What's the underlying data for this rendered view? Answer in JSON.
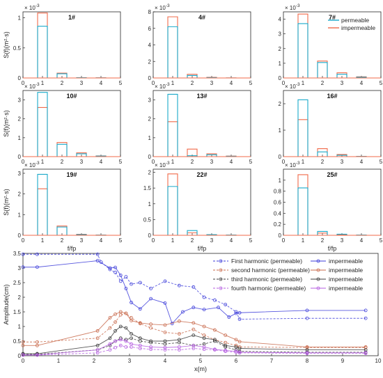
{
  "chart_data": [
    {
      "type": "bar",
      "kind": "spectrum-grid",
      "exponent_label": "× 10^-3",
      "exponent_base": "× 10",
      "exponent_power": "-3",
      "ylabel": "S(f)(m²·s)",
      "xlabel": "f/fp",
      "xlim": [
        0,
        5
      ],
      "xticks": [
        "0",
        "1",
        "2",
        "3",
        "4",
        "5"
      ],
      "categories": [
        "1",
        "2",
        "3",
        "4"
      ],
      "bar_width": 0.5,
      "legend": {
        "placement": "top-right of panel 7#",
        "entries": [
          "permeable",
          "impermeable"
        ]
      },
      "series_styles": [
        {
          "name": "permeable",
          "color": "#1aa9c9"
        },
        {
          "name": "impermeable",
          "color": "#f06a4a"
        }
      ],
      "panels": [
        {
          "title": "1#",
          "ylim": [
            0,
            1.1
          ],
          "yticks": [
            "0",
            "0.5",
            "1"
          ],
          "permeable": [
            0.86,
            0.07,
            0.005,
            0.002
          ],
          "impermeable": [
            1.08,
            0.08,
            0.005,
            0.002
          ]
        },
        {
          "title": "4#",
          "ylim": [
            0,
            8
          ],
          "yticks": [
            "0",
            "2",
            "4",
            "6",
            "8"
          ],
          "permeable": [
            6.2,
            0.3,
            0.05,
            0.01
          ],
          "impermeable": [
            7.4,
            0.45,
            0.08,
            0.01
          ]
        },
        {
          "title": "7#",
          "ylim": [
            0,
            4.5
          ],
          "yticks": [
            "0",
            "1",
            "2",
            "3",
            "4"
          ],
          "permeable": [
            3.7,
            1.05,
            0.25,
            0.05
          ],
          "impermeable": [
            4.35,
            1.15,
            0.35,
            0.08
          ]
        },
        {
          "title": "10#",
          "ylim": [
            0,
            3.5
          ],
          "yticks": [
            "0",
            "1",
            "2",
            "3"
          ],
          "permeable": [
            3.4,
            0.65,
            0.15,
            0.03
          ],
          "impermeable": [
            2.6,
            0.75,
            0.2,
            0.04
          ]
        },
        {
          "title": "13#",
          "ylim": [
            0,
            3.5
          ],
          "yticks": [
            "0",
            "1",
            "2",
            "3"
          ],
          "permeable": [
            3.3,
            0.05,
            0.1,
            0.02
          ],
          "impermeable": [
            1.85,
            0.4,
            0.15,
            0.03
          ]
        },
        {
          "title": "16#",
          "ylim": [
            0,
            2.5
          ],
          "yticks": [
            "0",
            "1",
            "2"
          ],
          "permeable": [
            2.15,
            0.18,
            0.05,
            0.01
          ],
          "impermeable": [
            1.4,
            0.3,
            0.08,
            0.01
          ]
        },
        {
          "title": "19#",
          "ylim": [
            0,
            3.2
          ],
          "yticks": [
            "0",
            "1",
            "2",
            "3"
          ],
          "permeable": [
            2.95,
            0.4,
            0.03,
            0.01
          ],
          "impermeable": [
            2.25,
            0.45,
            0.05,
            0.01
          ]
        },
        {
          "title": "22#",
          "ylim": [
            0,
            2.1
          ],
          "yticks": [
            "0",
            "0.5",
            "1",
            "1.5",
            "2"
          ],
          "permeable": [
            1.55,
            0.15,
            0.02,
            0.01
          ],
          "impermeable": [
            1.95,
            0.08,
            0.02,
            0.01
          ]
        },
        {
          "title": "25#",
          "ylim": [
            0,
            1.2
          ],
          "yticks": [
            "0",
            "0.2",
            "0.4",
            "0.6",
            "0.8",
            "1"
          ],
          "permeable": [
            0.86,
            0.07,
            0.02,
            0.005
          ],
          "impermeable": [
            1.1,
            0.04,
            0.01,
            0.005
          ]
        }
      ]
    },
    {
      "type": "line",
      "xlabel": "x(m)",
      "ylabel": "Amplitude(cm)",
      "xlim": [
        0,
        10
      ],
      "ylim": [
        0,
        3.5
      ],
      "xticks": [
        0,
        1,
        2,
        3,
        4,
        5,
        6,
        7,
        8,
        9,
        10
      ],
      "yticks": [
        0,
        0.5,
        1,
        1.5,
        2,
        2.5,
        3,
        3.5
      ],
      "legend_placement": "top-right",
      "series": [
        {
          "name": "First harmonic (permeable)",
          "color": "#3b3bd9",
          "dashed": true,
          "points": [
            [
              0,
              3.47
            ],
            [
              0.4,
              3.47
            ],
            [
              2.1,
              3.47
            ],
            [
              2.2,
              3.2
            ],
            [
              2.45,
              2.95
            ],
            [
              2.6,
              2.85
            ],
            [
              2.75,
              2.55
            ],
            [
              2.9,
              2.7
            ],
            [
              3.05,
              2.45
            ],
            [
              3.3,
              2.5
            ],
            [
              3.6,
              2.3
            ],
            [
              4.0,
              2.55
            ],
            [
              4.4,
              2.4
            ],
            [
              4.8,
              2.35
            ],
            [
              5.1,
              2.0
            ],
            [
              5.4,
              1.9
            ],
            [
              5.7,
              1.75
            ],
            [
              6.0,
              1.5
            ],
            [
              6.1,
              1.25
            ],
            [
              8.0,
              1.28
            ],
            [
              9.65,
              1.28
            ]
          ]
        },
        {
          "name": "impermeable",
          "color": "#3b3bd9",
          "dashed": false,
          "points": [
            [
              0,
              3.03
            ],
            [
              0.4,
              3.03
            ],
            [
              2.1,
              3.25
            ],
            [
              2.45,
              3.0
            ],
            [
              2.6,
              3.02
            ],
            [
              2.75,
              2.75
            ],
            [
              2.9,
              2.3
            ],
            [
              3.05,
              1.82
            ],
            [
              3.3,
              1.6
            ],
            [
              3.6,
              1.95
            ],
            [
              4.0,
              1.8
            ],
            [
              4.2,
              1.1
            ],
            [
              4.5,
              1.5
            ],
            [
              4.8,
              1.65
            ],
            [
              5.1,
              1.58
            ],
            [
              5.5,
              1.65
            ],
            [
              5.8,
              1.32
            ],
            [
              6.0,
              1.45
            ],
            [
              6.1,
              1.47
            ],
            [
              8.0,
              1.55
            ],
            [
              9.65,
              1.55
            ]
          ]
        },
        {
          "name": "second harmonic (permeable)",
          "color": "#c8684a",
          "dashed": true,
          "points": [
            [
              0,
              0.47
            ],
            [
              0.4,
              0.47
            ],
            [
              2.1,
              0.6
            ],
            [
              2.45,
              0.95
            ],
            [
              2.6,
              1.15
            ],
            [
              2.75,
              1.4
            ],
            [
              2.9,
              1.45
            ],
            [
              3.05,
              1.3
            ],
            [
              3.3,
              1.1
            ],
            [
              3.6,
              0.95
            ],
            [
              4.0,
              0.8
            ],
            [
              4.4,
              0.75
            ],
            [
              4.8,
              0.9
            ],
            [
              5.1,
              0.7
            ],
            [
              5.4,
              0.55
            ],
            [
              5.7,
              0.45
            ],
            [
              6.0,
              0.35
            ],
            [
              6.1,
              0.3
            ],
            [
              8.0,
              0.28
            ],
            [
              9.65,
              0.28
            ]
          ]
        },
        {
          "name": "impermeable",
          "color": "#c8684a",
          "dashed": false,
          "points": [
            [
              0,
              0.35
            ],
            [
              0.4,
              0.35
            ],
            [
              2.1,
              0.85
            ],
            [
              2.45,
              1.3
            ],
            [
              2.6,
              1.42
            ],
            [
              2.75,
              1.5
            ],
            [
              2.9,
              1.45
            ],
            [
              3.05,
              1.2
            ],
            [
              3.3,
              1.12
            ],
            [
              3.6,
              1.08
            ],
            [
              4.0,
              1.05
            ],
            [
              4.4,
              1.18
            ],
            [
              4.8,
              1.12
            ],
            [
              5.1,
              1.0
            ],
            [
              5.4,
              0.88
            ],
            [
              5.7,
              0.7
            ],
            [
              6.0,
              0.55
            ],
            [
              6.1,
              0.48
            ],
            [
              8.0,
              0.3
            ],
            [
              9.65,
              0.3
            ]
          ]
        },
        {
          "name": "third harmonic (permeable)",
          "color": "#3a3a3a",
          "dashed": true,
          "points": [
            [
              0,
              0.05
            ],
            [
              0.4,
              0.05
            ],
            [
              2.1,
              0.2
            ],
            [
              2.45,
              0.35
            ],
            [
              2.6,
              0.5
            ],
            [
              2.75,
              0.6
            ],
            [
              2.9,
              0.55
            ],
            [
              3.05,
              0.6
            ],
            [
              3.3,
              0.5
            ],
            [
              3.6,
              0.45
            ],
            [
              4.0,
              0.4
            ],
            [
              4.4,
              0.45
            ],
            [
              4.8,
              0.35
            ],
            [
              5.1,
              0.4
            ],
            [
              5.4,
              0.5
            ],
            [
              5.7,
              0.3
            ],
            [
              6.0,
              0.2
            ],
            [
              6.1,
              0.15
            ],
            [
              8.0,
              0.12
            ],
            [
              9.65,
              0.12
            ]
          ]
        },
        {
          "name": "impermeable",
          "color": "#3a3a3a",
          "dashed": false,
          "points": [
            [
              0,
              0.07
            ],
            [
              0.4,
              0.07
            ],
            [
              2.1,
              0.35
            ],
            [
              2.45,
              0.6
            ],
            [
              2.6,
              0.85
            ],
            [
              2.75,
              1.0
            ],
            [
              2.9,
              0.95
            ],
            [
              3.05,
              0.75
            ],
            [
              3.3,
              0.6
            ],
            [
              3.6,
              0.5
            ],
            [
              4.0,
              0.5
            ],
            [
              4.4,
              0.55
            ],
            [
              4.8,
              0.7
            ],
            [
              5.1,
              0.6
            ],
            [
              5.4,
              0.55
            ],
            [
              5.7,
              0.35
            ],
            [
              6.0,
              0.3
            ],
            [
              6.1,
              0.25
            ],
            [
              8.0,
              0.2
            ],
            [
              9.65,
              0.2
            ]
          ]
        },
        {
          "name": "fourth harmonic (permeable)",
          "color": "#b45ce0",
          "dashed": true,
          "points": [
            [
              0,
              0.02
            ],
            [
              0.4,
              0.02
            ],
            [
              2.1,
              0.1
            ],
            [
              2.45,
              0.2
            ],
            [
              2.6,
              0.28
            ],
            [
              2.75,
              0.35
            ],
            [
              2.9,
              0.3
            ],
            [
              3.05,
              0.3
            ],
            [
              3.3,
              0.25
            ],
            [
              3.6,
              0.22
            ],
            [
              4.0,
              0.2
            ],
            [
              4.4,
              0.2
            ],
            [
              4.8,
              0.25
            ],
            [
              5.1,
              0.22
            ],
            [
              5.4,
              0.2
            ],
            [
              5.7,
              0.15
            ],
            [
              6.0,
              0.12
            ],
            [
              6.1,
              0.1
            ],
            [
              8.0,
              0.08
            ],
            [
              9.65,
              0.08
            ]
          ]
        },
        {
          "name": "impermeable",
          "color": "#b45ce0",
          "dashed": false,
          "points": [
            [
              0,
              0.03
            ],
            [
              0.4,
              0.03
            ],
            [
              2.1,
              0.2
            ],
            [
              2.45,
              0.4
            ],
            [
              2.6,
              0.5
            ],
            [
              2.75,
              0.55
            ],
            [
              2.9,
              0.5
            ],
            [
              3.05,
              0.4
            ],
            [
              3.3,
              0.35
            ],
            [
              3.6,
              0.3
            ],
            [
              4.0,
              0.28
            ],
            [
              4.4,
              0.3
            ],
            [
              4.8,
              0.35
            ],
            [
              5.1,
              0.3
            ],
            [
              5.4,
              0.22
            ],
            [
              5.7,
              0.18
            ],
            [
              6.0,
              0.15
            ],
            [
              6.1,
              0.12
            ],
            [
              8.0,
              0.1
            ],
            [
              9.65,
              0.1
            ]
          ]
        }
      ]
    }
  ]
}
